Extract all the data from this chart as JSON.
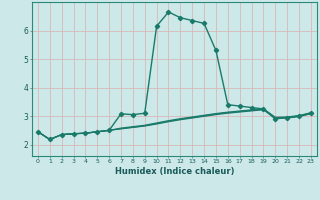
{
  "title": "",
  "xlabel": "Humidex (Indice chaleur)",
  "bg_color": "#cce8e8",
  "grid_color": "#b8d8d8",
  "line_color": "#1a7a6a",
  "x_values": [
    0,
    1,
    2,
    3,
    4,
    5,
    6,
    7,
    8,
    9,
    10,
    11,
    12,
    13,
    14,
    15,
    16,
    17,
    18,
    19,
    20,
    21,
    22,
    23
  ],
  "main_line": [
    2.45,
    2.18,
    2.35,
    2.38,
    2.4,
    2.45,
    2.5,
    3.08,
    3.05,
    3.1,
    6.15,
    6.65,
    6.45,
    6.35,
    6.25,
    5.3,
    3.4,
    3.35,
    3.3,
    3.25,
    2.9,
    2.95,
    3.0,
    3.1
  ],
  "flat_lines": [
    [
      2.45,
      2.18,
      2.35,
      2.38,
      2.4,
      2.45,
      2.5,
      2.55,
      2.6,
      2.65,
      2.72,
      2.8,
      2.87,
      2.93,
      2.99,
      3.05,
      3.1,
      3.14,
      3.18,
      3.22,
      2.92,
      2.93,
      2.98,
      3.08
    ],
    [
      2.45,
      2.18,
      2.35,
      2.38,
      2.4,
      2.45,
      2.5,
      2.56,
      2.61,
      2.66,
      2.74,
      2.82,
      2.89,
      2.95,
      3.01,
      3.07,
      3.12,
      3.16,
      3.2,
      3.24,
      2.94,
      2.95,
      3.0,
      3.1
    ],
    [
      2.45,
      2.18,
      2.35,
      2.38,
      2.4,
      2.45,
      2.5,
      2.58,
      2.63,
      2.68,
      2.76,
      2.84,
      2.91,
      2.97,
      3.03,
      3.09,
      3.14,
      3.18,
      3.22,
      3.26,
      2.96,
      2.97,
      3.02,
      3.12
    ]
  ],
  "ylim": [
    1.6,
    7.0
  ],
  "xlim": [
    -0.5,
    23.5
  ],
  "yticks": [
    2,
    3,
    4,
    5,
    6
  ],
  "xticks": [
    0,
    1,
    2,
    3,
    4,
    5,
    6,
    7,
    8,
    9,
    10,
    11,
    12,
    13,
    14,
    15,
    16,
    17,
    18,
    19,
    20,
    21,
    22,
    23
  ]
}
